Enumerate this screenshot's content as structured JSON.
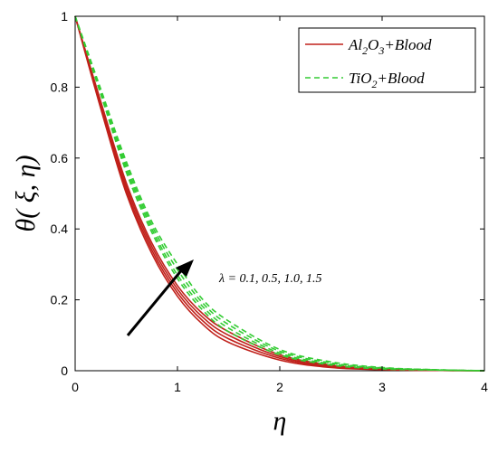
{
  "chart_data": {
    "type": "line",
    "xlabel": "η",
    "ylabel": "θ( ξ, η)",
    "xlim": [
      0,
      4
    ],
    "ylim": [
      0,
      1
    ],
    "xticks": [
      "0",
      "1",
      "2",
      "3",
      "4"
    ],
    "yticks": [
      "0",
      "0.2",
      "0.4",
      "0.6",
      "0.8",
      "1"
    ],
    "grid": false,
    "legend_placement": "top-right",
    "legend": [
      {
        "label_base": "Al",
        "sub1": "2",
        "mid": "O",
        "sub2": "3",
        "suffix": "+Blood",
        "color": "#c0201a",
        "dash": "solid"
      },
      {
        "label_base": "TiO",
        "sub1": "2",
        "mid": "",
        "sub2": "",
        "suffix": "+Blood",
        "color": "#33cc33",
        "dash": "dashed"
      }
    ],
    "annotation": "λ = 0.1, 0.5, 1.0, 1.5",
    "series": [
      {
        "group": "Al2O3+Blood",
        "lambda": 0.1,
        "color": "#c0201a",
        "dash": "solid",
        "x": [
          0,
          0.25,
          0.5,
          0.75,
          1.0,
          1.25,
          1.5,
          2.0,
          2.5,
          3.0,
          3.5,
          4.0
        ],
        "y": [
          1.0,
          0.74,
          0.5,
          0.33,
          0.21,
          0.13,
          0.08,
          0.03,
          0.009,
          0.003,
          0.001,
          0.0
        ]
      },
      {
        "group": "Al2O3+Blood",
        "lambda": 0.5,
        "color": "#c0201a",
        "dash": "solid",
        "x": [
          0,
          0.25,
          0.5,
          0.75,
          1.0,
          1.25,
          1.5,
          2.0,
          2.5,
          3.0,
          3.5,
          4.0
        ],
        "y": [
          1.0,
          0.75,
          0.51,
          0.34,
          0.22,
          0.14,
          0.09,
          0.035,
          0.011,
          0.004,
          0.001,
          0.0
        ]
      },
      {
        "group": "Al2O3+Blood",
        "lambda": 1.0,
        "color": "#c0201a",
        "dash": "solid",
        "x": [
          0,
          0.25,
          0.5,
          0.75,
          1.0,
          1.25,
          1.5,
          2.0,
          2.5,
          3.0,
          3.5,
          4.0
        ],
        "y": [
          1.0,
          0.755,
          0.52,
          0.35,
          0.23,
          0.15,
          0.1,
          0.04,
          0.013,
          0.004,
          0.001,
          0.0
        ]
      },
      {
        "group": "Al2O3+Blood",
        "lambda": 1.5,
        "color": "#c0201a",
        "dash": "solid",
        "x": [
          0,
          0.25,
          0.5,
          0.75,
          1.0,
          1.25,
          1.5,
          2.0,
          2.5,
          3.0,
          3.5,
          4.0
        ],
        "y": [
          1.0,
          0.76,
          0.53,
          0.36,
          0.24,
          0.16,
          0.11,
          0.045,
          0.016,
          0.005,
          0.002,
          0.0
        ]
      },
      {
        "group": "TiO2+Blood",
        "lambda": 0.1,
        "color": "#33cc33",
        "dash": "dashed",
        "x": [
          0,
          0.25,
          0.5,
          0.75,
          1.0,
          1.25,
          1.5,
          2.0,
          2.5,
          3.0,
          3.5,
          4.0
        ],
        "y": [
          1.0,
          0.78,
          0.56,
          0.39,
          0.26,
          0.17,
          0.11,
          0.045,
          0.016,
          0.005,
          0.002,
          0.0
        ]
      },
      {
        "group": "TiO2+Blood",
        "lambda": 0.5,
        "color": "#33cc33",
        "dash": "dashed",
        "x": [
          0,
          0.25,
          0.5,
          0.75,
          1.0,
          1.25,
          1.5,
          2.0,
          2.5,
          3.0,
          3.5,
          4.0
        ],
        "y": [
          1.0,
          0.785,
          0.57,
          0.4,
          0.27,
          0.18,
          0.12,
          0.05,
          0.019,
          0.007,
          0.002,
          0.0
        ]
      },
      {
        "group": "TiO2+Blood",
        "lambda": 1.0,
        "color": "#33cc33",
        "dash": "dashed",
        "x": [
          0,
          0.25,
          0.5,
          0.75,
          1.0,
          1.25,
          1.5,
          2.0,
          2.5,
          3.0,
          3.5,
          4.0
        ],
        "y": [
          1.0,
          0.79,
          0.58,
          0.41,
          0.285,
          0.19,
          0.13,
          0.055,
          0.022,
          0.008,
          0.003,
          0.0
        ]
      },
      {
        "group": "TiO2+Blood",
        "lambda": 1.5,
        "color": "#33cc33",
        "dash": "dashed",
        "x": [
          0,
          0.25,
          0.5,
          0.75,
          1.0,
          1.25,
          1.5,
          2.0,
          2.5,
          3.0,
          3.5,
          4.0
        ],
        "y": [
          1.0,
          0.795,
          0.59,
          0.42,
          0.3,
          0.2,
          0.14,
          0.06,
          0.025,
          0.009,
          0.003,
          0.0
        ]
      }
    ]
  }
}
